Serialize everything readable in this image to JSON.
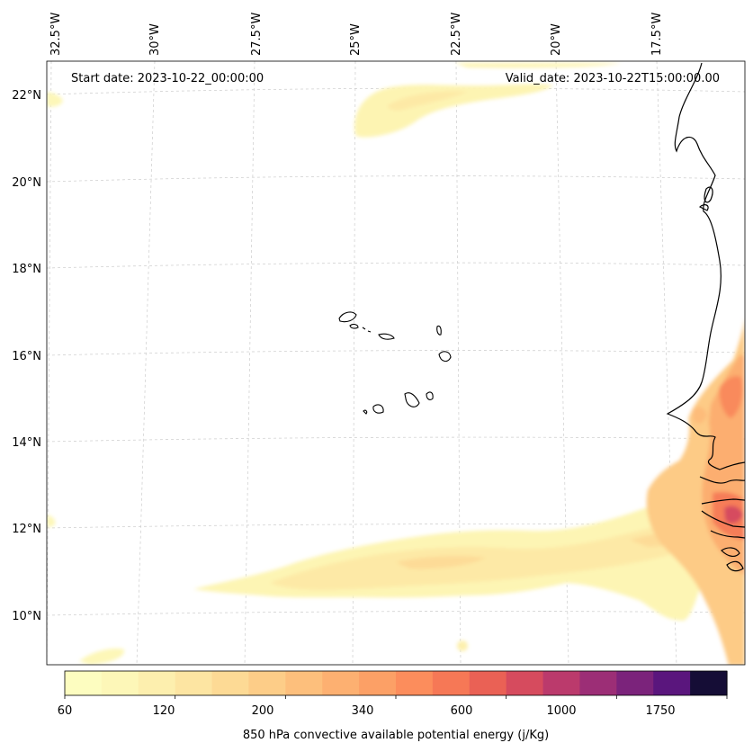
{
  "map": {
    "start_date_label": "Start date: 2023-10-22_00:00:00",
    "valid_date_label": "Valid_date: 2023-10-22T15:00:00.00",
    "lon_labels": [
      "32.5°W",
      "30°W",
      "27.5°W",
      "25°W",
      "22.5°W",
      "20°W",
      "17.5°W"
    ],
    "lat_labels": [
      "22°N",
      "20°N",
      "18°N",
      "16°N",
      "14°N",
      "12°N",
      "10°N"
    ]
  },
  "colorbar": {
    "title": "850 hPa convective available potential energy (j/Kg)",
    "tick_labels": [
      "60",
      "120",
      "200",
      "340",
      "600",
      "1000",
      "1750"
    ],
    "colors": [
      "#fdfdc0",
      "#fdf7b8",
      "#fdefae",
      "#fde5a2",
      "#fdda95",
      "#fdcd88",
      "#fdbf7c",
      "#fdb071",
      "#fca066",
      "#fc8d5c",
      "#f67856",
      "#ea6155",
      "#d64b5e",
      "#bb3a6c",
      "#9c2e76",
      "#7b237b",
      "#5a167d",
      "#150d36"
    ]
  }
}
